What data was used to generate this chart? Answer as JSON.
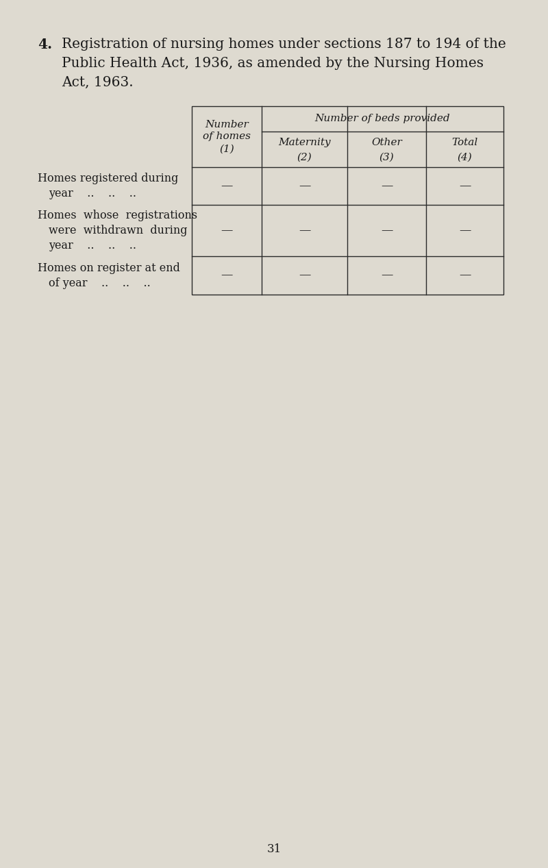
{
  "title_number": "4.",
  "title_line1": "Registration of nursing homes under sections 187 to 194 of the",
  "title_line2": "Public Health Act, 1936, as amended by the Nursing Homes",
  "title_line3": "Act, 1963.",
  "background_color": "#dedad0",
  "page_number": "31",
  "col_header_top": "Number of beds provided",
  "col_header_row1": [
    "Number",
    "Maternity",
    "Other",
    "Total"
  ],
  "col_header_row2": [
    "of homes",
    "",
    "",
    ""
  ],
  "col_header_row3": [
    "(1)",
    "(2)",
    "(3)",
    "(4)"
  ],
  "row_labels_line1": [
    "Homes registered during",
    "Homes  whose  registrations",
    "Homes on register at end"
  ],
  "row_labels_line2": [
    "year    ..    ..    ..",
    "were  withdrawn  during",
    "of year    ..    ..    .."
  ],
  "row_labels_line3": [
    "",
    "year    ..    ..    ..",
    ""
  ],
  "cell_values": [
    [
      "—",
      "—",
      "—",
      "—"
    ],
    [
      "—",
      "—",
      "—",
      "—"
    ],
    [
      "—",
      "—",
      "—",
      "—"
    ]
  ],
  "font_size_title": 14.5,
  "font_size_table_header": 11,
  "font_size_table_body": 11.5,
  "font_size_page": 12
}
